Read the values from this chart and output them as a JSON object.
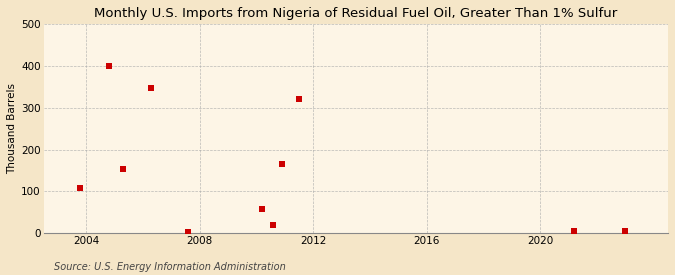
{
  "title": "Monthly U.S. Imports from Nigeria of Residual Fuel Oil, Greater Than 1% Sulfur",
  "ylabel": "Thousand Barrels",
  "source": "Source: U.S. Energy Information Administration",
  "fig_bg_color": "#f5e6c8",
  "plot_bg_color": "#fdf5e6",
  "scatter_color": "#cc0000",
  "grid_color": "#aaaaaa",
  "xlim": [
    2002.5,
    2024.5
  ],
  "ylim": [
    0,
    500
  ],
  "yticks": [
    0,
    100,
    200,
    300,
    400,
    500
  ],
  "xticks": [
    2004,
    2008,
    2012,
    2016,
    2020
  ],
  "data_x": [
    2003.8,
    2004.8,
    2005.3,
    2006.3,
    2007.6,
    2010.2,
    2010.6,
    2010.9,
    2011.5,
    2021.2,
    2023.0
  ],
  "data_y": [
    107,
    400,
    153,
    348,
    4,
    58,
    20,
    165,
    320,
    5,
    5
  ],
  "marker_size": 18,
  "title_fontsize": 9.5,
  "ylabel_fontsize": 7.5,
  "tick_fontsize": 7.5,
  "source_fontsize": 7
}
